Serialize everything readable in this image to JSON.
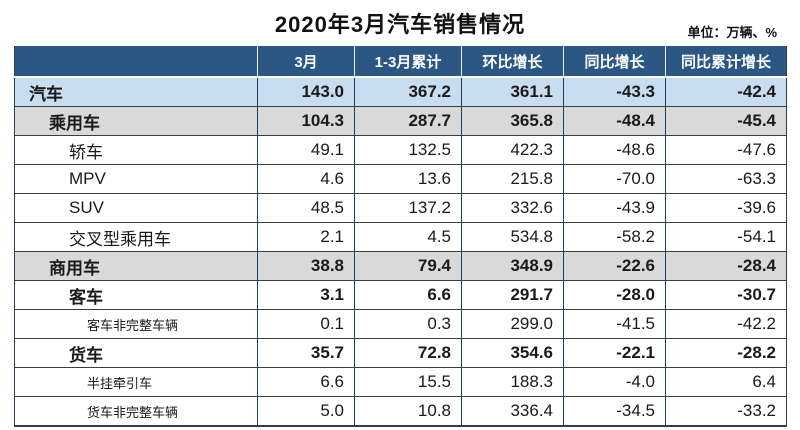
{
  "title": "2020年3月汽车销售情况",
  "unit_note": "单位：万辆、%",
  "colors": {
    "header_bg": "#2a5784",
    "header_text": "#ffffff",
    "row_total_blue": "#c9ddf1",
    "row_section_gray": "#d9d9d9",
    "grid_line": "#3c3c3c",
    "column_divider": "#223d5a"
  },
  "chart_data": {
    "type": "table",
    "title": "2020年3月汽车销售情况",
    "unit": "万辆、%",
    "columns": [
      "",
      "3月",
      "1-3月累计",
      "环比增长",
      "同比增长",
      "同比累计增长"
    ],
    "rows": [
      {
        "label": "汽车",
        "indent": 0,
        "bold": true,
        "bg": "blue",
        "small": false,
        "values": [
          "143.0",
          "367.2",
          "361.1",
          "-43.3",
          "-42.4"
        ]
      },
      {
        "label": "乘用车",
        "indent": 1,
        "bold": true,
        "bg": "gray",
        "small": false,
        "values": [
          "104.3",
          "287.7",
          "365.8",
          "-48.4",
          "-45.4"
        ]
      },
      {
        "label": "轿车",
        "indent": 2,
        "bold": false,
        "bg": "white",
        "small": false,
        "values": [
          "49.1",
          "132.5",
          "422.3",
          "-48.6",
          "-47.6"
        ]
      },
      {
        "label": "MPV",
        "indent": 2,
        "bold": false,
        "bg": "white",
        "small": false,
        "values": [
          "4.6",
          "13.6",
          "215.8",
          "-70.0",
          "-63.3"
        ]
      },
      {
        "label": "SUV",
        "indent": 2,
        "bold": false,
        "bg": "white",
        "small": false,
        "values": [
          "48.5",
          "137.2",
          "332.6",
          "-43.9",
          "-39.6"
        ]
      },
      {
        "label": "交叉型乘用车",
        "indent": 2,
        "bold": false,
        "bg": "white",
        "small": false,
        "values": [
          "2.1",
          "4.5",
          "534.8",
          "-58.2",
          "-54.1"
        ]
      },
      {
        "label": "商用车",
        "indent": 1,
        "bold": true,
        "bg": "gray",
        "small": false,
        "values": [
          "38.8",
          "79.4",
          "348.9",
          "-22.6",
          "-28.4"
        ]
      },
      {
        "label": "客车",
        "indent": 2,
        "bold": true,
        "bg": "white",
        "small": false,
        "values": [
          "3.1",
          "6.6",
          "291.7",
          "-28.0",
          "-30.7"
        ]
      },
      {
        "label": "客车非完整车辆",
        "indent": 3,
        "bold": false,
        "bg": "white",
        "small": true,
        "values": [
          "0.1",
          "0.3",
          "299.0",
          "-41.5",
          "-42.2"
        ]
      },
      {
        "label": "货车",
        "indent": 2,
        "bold": true,
        "bg": "white",
        "small": false,
        "values": [
          "35.7",
          "72.8",
          "354.6",
          "-22.1",
          "-28.2"
        ]
      },
      {
        "label": "半挂牵引车",
        "indent": 3,
        "bold": false,
        "bg": "white",
        "small": true,
        "values": [
          "6.6",
          "15.5",
          "188.3",
          "-4.0",
          "6.4"
        ]
      },
      {
        "label": "货车非完整车辆",
        "indent": 3,
        "bold": false,
        "bg": "white",
        "small": true,
        "values": [
          "5.0",
          "10.8",
          "336.4",
          "-34.5",
          "-33.2"
        ]
      }
    ]
  }
}
